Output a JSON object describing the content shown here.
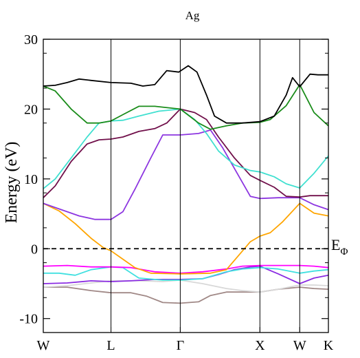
{
  "chart_data": {
    "type": "line",
    "title": "Ag",
    "ylabel": "Energy (eV)",
    "xlabel": "",
    "ylim": [
      -12,
      30
    ],
    "xlim": [
      0,
      4.1
    ],
    "yticks": [
      -10,
      0,
      10,
      20,
      30
    ],
    "ytick_labels": [
      "-10",
      "0",
      "10",
      "20",
      "30"
    ],
    "k_points": [
      {
        "label": "W",
        "x": 0.0
      },
      {
        "label": "L",
        "x": 0.85
      },
      {
        "label": "Γ",
        "x": 1.72
      },
      {
        "label": "X",
        "x": 2.72
      },
      {
        "label": "W",
        "x": 3.22
      },
      {
        "label": "K",
        "x": 3.58
      }
    ],
    "fermi_level": {
      "y": 0,
      "label": "E",
      "subscript": "Φ"
    },
    "grid": false,
    "series": [
      {
        "color": "#a08886",
        "points": [
          [
            0,
            -5.5
          ],
          [
            0.3,
            -5.5
          ],
          [
            0.6,
            -6.0
          ],
          [
            0.85,
            -6.3
          ],
          [
            1.1,
            -6.3
          ],
          [
            1.3,
            -6.8
          ],
          [
            1.5,
            -7.7
          ],
          [
            1.72,
            -7.8
          ],
          [
            1.95,
            -7.6
          ],
          [
            2.1,
            -6.7
          ],
          [
            2.3,
            -6.2
          ],
          [
            2.5,
            -6.2
          ],
          [
            2.72,
            -6.2
          ],
          [
            2.95,
            -5.8
          ],
          [
            3.22,
            -5.5
          ],
          [
            3.4,
            -5.7
          ],
          [
            3.58,
            -5.8
          ]
        ]
      },
      {
        "color": "#d8d8d8",
        "points": [
          [
            0,
            -5.5
          ],
          [
            0.3,
            -5.3
          ],
          [
            0.6,
            -4.9
          ],
          [
            0.85,
            -4.6
          ],
          [
            1.2,
            -4.6
          ],
          [
            1.5,
            -4.7
          ],
          [
            1.72,
            -4.5
          ],
          [
            2.0,
            -5.0
          ],
          [
            2.3,
            -5.7
          ],
          [
            2.5,
            -6.0
          ],
          [
            2.72,
            -6.2
          ],
          [
            2.95,
            -5.8
          ],
          [
            3.22,
            -5.2
          ],
          [
            3.4,
            -5.2
          ],
          [
            3.58,
            -5.3
          ]
        ]
      },
      {
        "color": "#8a2be2",
        "points": [
          [
            0,
            -5.0
          ],
          [
            0.3,
            -4.9
          ],
          [
            0.6,
            -4.6
          ],
          [
            0.85,
            -4.7
          ],
          [
            1.1,
            -4.6
          ],
          [
            1.4,
            -4.4
          ],
          [
            1.72,
            -4.4
          ],
          [
            2.0,
            -4.3
          ],
          [
            2.2,
            -3.7
          ],
          [
            2.4,
            -3.0
          ],
          [
            2.6,
            -2.6
          ],
          [
            2.72,
            -2.5
          ],
          [
            2.95,
            -3.6
          ],
          [
            3.22,
            -5.0
          ],
          [
            3.4,
            -4.2
          ],
          [
            3.58,
            -3.8
          ]
        ]
      },
      {
        "color": "#40e0e0",
        "points": [
          [
            0,
            -3.5
          ],
          [
            0.2,
            -3.5
          ],
          [
            0.4,
            -3.8
          ],
          [
            0.6,
            -3.0
          ],
          [
            0.85,
            -2.6
          ],
          [
            1.0,
            -2.7
          ],
          [
            1.2,
            -4.2
          ],
          [
            1.5,
            -4.5
          ],
          [
            1.72,
            -4.5
          ],
          [
            2.0,
            -4.3
          ],
          [
            2.3,
            -3.3
          ],
          [
            2.5,
            -2.9
          ],
          [
            2.72,
            -2.7
          ],
          [
            2.95,
            -2.9
          ],
          [
            3.22,
            -3.5
          ],
          [
            3.4,
            -3.2
          ],
          [
            3.58,
            -3.0
          ]
        ]
      },
      {
        "color": "#ff00ff",
        "points": [
          [
            0,
            -2.5
          ],
          [
            0.3,
            -2.4
          ],
          [
            0.6,
            -2.6
          ],
          [
            0.85,
            -2.6
          ],
          [
            1.1,
            -2.7
          ],
          [
            1.4,
            -3.3
          ],
          [
            1.72,
            -3.5
          ],
          [
            2.0,
            -3.3
          ],
          [
            2.3,
            -2.9
          ],
          [
            2.5,
            -2.5
          ],
          [
            2.72,
            -2.4
          ],
          [
            2.95,
            -2.4
          ],
          [
            3.22,
            -2.4
          ],
          [
            3.4,
            -2.5
          ],
          [
            3.58,
            -2.7
          ]
        ]
      },
      {
        "color": "#ffa500",
        "points": [
          [
            0,
            6.5
          ],
          [
            0.2,
            5.4
          ],
          [
            0.4,
            3.6
          ],
          [
            0.6,
            1.5
          ],
          [
            0.75,
            0.2
          ],
          [
            0.85,
            -0.3
          ],
          [
            1.0,
            -1.5
          ],
          [
            1.15,
            -2.7
          ],
          [
            1.35,
            -3.5
          ],
          [
            1.72,
            -3.6
          ],
          [
            2.1,
            -3.5
          ],
          [
            2.3,
            -3.0
          ],
          [
            2.45,
            -1.0
          ],
          [
            2.6,
            1.0
          ],
          [
            2.72,
            1.8
          ],
          [
            2.85,
            2.3
          ],
          [
            3.0,
            3.8
          ],
          [
            3.22,
            6.5
          ],
          [
            3.4,
            5.1
          ],
          [
            3.58,
            4.7
          ]
        ]
      },
      {
        "color": "#8c35e0",
        "points": [
          [
            0,
            6.5
          ],
          [
            0.2,
            5.7
          ],
          [
            0.45,
            4.7
          ],
          [
            0.65,
            4.2
          ],
          [
            0.85,
            4.2
          ],
          [
            1.0,
            5.3
          ],
          [
            1.15,
            8.5
          ],
          [
            1.35,
            13.0
          ],
          [
            1.5,
            16.3
          ],
          [
            1.72,
            16.3
          ],
          [
            1.95,
            16.5
          ],
          [
            2.1,
            17.0
          ],
          [
            2.25,
            14.5
          ],
          [
            2.45,
            10.5
          ],
          [
            2.6,
            7.5
          ],
          [
            2.72,
            7.2
          ],
          [
            2.95,
            7.3
          ],
          [
            3.22,
            7.3
          ],
          [
            3.4,
            6.3
          ],
          [
            3.58,
            5.6
          ]
        ]
      },
      {
        "color": "#700f4a",
        "points": [
          [
            0,
            7.3
          ],
          [
            0.15,
            9.0
          ],
          [
            0.35,
            12.5
          ],
          [
            0.55,
            15.0
          ],
          [
            0.7,
            15.6
          ],
          [
            0.85,
            15.7
          ],
          [
            1.0,
            16.0
          ],
          [
            1.2,
            16.8
          ],
          [
            1.4,
            17.2
          ],
          [
            1.55,
            18.0
          ],
          [
            1.72,
            20.0
          ],
          [
            1.9,
            19.5
          ],
          [
            2.05,
            18.5
          ],
          [
            2.2,
            16.0
          ],
          [
            2.4,
            13.0
          ],
          [
            2.6,
            10.5
          ],
          [
            2.72,
            9.8
          ],
          [
            2.9,
            8.8
          ],
          [
            3.05,
            7.5
          ],
          [
            3.22,
            7.4
          ],
          [
            3.35,
            7.6
          ],
          [
            3.58,
            7.6
          ]
        ]
      },
      {
        "color": "#40e0d0",
        "points": [
          [
            0,
            8.6
          ],
          [
            0.15,
            10.0
          ],
          [
            0.35,
            13.0
          ],
          [
            0.55,
            16.0
          ],
          [
            0.7,
            18.0
          ],
          [
            0.85,
            18.3
          ],
          [
            1.0,
            18.4
          ],
          [
            1.2,
            19.0
          ],
          [
            1.45,
            19.7
          ],
          [
            1.72,
            20.0
          ],
          [
            1.9,
            18.5
          ],
          [
            2.05,
            16.5
          ],
          [
            2.2,
            14.0
          ],
          [
            2.4,
            12.0
          ],
          [
            2.6,
            11.2
          ],
          [
            2.72,
            11.0
          ],
          [
            2.9,
            10.3
          ],
          [
            3.05,
            9.3
          ],
          [
            3.22,
            8.7
          ],
          [
            3.4,
            10.8
          ],
          [
            3.58,
            13.3
          ]
        ]
      },
      {
        "color": "#1a8c1a",
        "points": [
          [
            0,
            23.3
          ],
          [
            0.15,
            22.6
          ],
          [
            0.35,
            20.0
          ],
          [
            0.55,
            18.0
          ],
          [
            0.7,
            18.0
          ],
          [
            0.85,
            18.3
          ],
          [
            1.0,
            19.2
          ],
          [
            1.2,
            20.4
          ],
          [
            1.4,
            20.4
          ],
          [
            1.72,
            20.0
          ],
          [
            1.95,
            18.0
          ],
          [
            2.1,
            17.1
          ],
          [
            2.3,
            17.6
          ],
          [
            2.5,
            18.0
          ],
          [
            2.72,
            18.1
          ],
          [
            2.85,
            18.5
          ],
          [
            3.05,
            20.5
          ],
          [
            3.22,
            23.5
          ],
          [
            3.4,
            19.5
          ],
          [
            3.58,
            17.6
          ]
        ]
      },
      {
        "color": "#000000",
        "points": [
          [
            0,
            23.3
          ],
          [
            0.15,
            23.4
          ],
          [
            0.3,
            23.8
          ],
          [
            0.45,
            24.3
          ],
          [
            0.6,
            24.1
          ],
          [
            0.85,
            23.8
          ],
          [
            1.1,
            23.7
          ],
          [
            1.25,
            23.3
          ],
          [
            1.4,
            23.5
          ],
          [
            1.55,
            25.5
          ],
          [
            1.7,
            25.3
          ],
          [
            1.82,
            26.2
          ],
          [
            1.93,
            25.3
          ],
          [
            2.05,
            22.0
          ],
          [
            2.15,
            19.0
          ],
          [
            2.3,
            18.0
          ],
          [
            2.5,
            18.0
          ],
          [
            2.72,
            18.2
          ],
          [
            2.9,
            19.0
          ],
          [
            3.05,
            22.0
          ],
          [
            3.13,
            24.5
          ],
          [
            3.22,
            23.2
          ],
          [
            3.35,
            25.0
          ],
          [
            3.45,
            24.9
          ],
          [
            3.58,
            24.9
          ]
        ]
      }
    ]
  }
}
